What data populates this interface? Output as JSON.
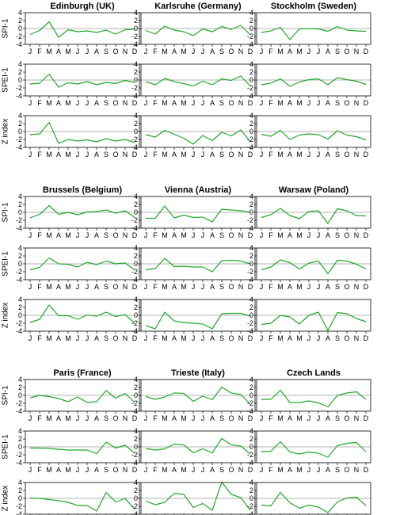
{
  "chart_data": {
    "type": "line",
    "months": [
      "J",
      "F",
      "M",
      "A",
      "M",
      "J",
      "J",
      "A",
      "S",
      "O",
      "N",
      "D"
    ],
    "y_ticks": [
      4,
      2,
      0,
      -2,
      -4
    ],
    "ylim": [
      -4,
      4
    ],
    "row_labels": [
      "SPI-1",
      "SPEI-1",
      "Z index"
    ],
    "line_color": "#22a82b",
    "zero_line_color": "#9a9a9a",
    "panels": [
      {
        "title": "Edinburgh (UK)",
        "series": [
          [
            -1.5,
            -0.5,
            1.7,
            -2.2,
            -0.3,
            -0.8,
            -0.6,
            -1.0,
            -0.4,
            -1.4,
            -0.3,
            -0.2
          ],
          [
            -1.0,
            -0.8,
            1.5,
            -1.8,
            -0.7,
            -1.0,
            -0.4,
            -1.2,
            -0.6,
            -0.9,
            -0.1,
            -0.6
          ],
          [
            -0.8,
            -0.6,
            2.3,
            -3.0,
            -2.0,
            -2.4,
            -2.1,
            -2.6,
            -1.8,
            -2.4,
            -2.0,
            -2.8
          ]
        ]
      },
      {
        "title": "Karlsruhe (Germany)",
        "series": [
          [
            -0.5,
            -1.4,
            0.6,
            -0.4,
            -0.8,
            -1.8,
            -0.1,
            -0.8,
            0.5,
            -0.2,
            0.8,
            -1.6
          ],
          [
            -0.4,
            -1.2,
            0.4,
            -0.4,
            -0.9,
            -1.5,
            -0.3,
            -1.2,
            0.3,
            -0.1,
            1.0,
            -1.5
          ],
          [
            -0.8,
            -1.4,
            0.3,
            -0.7,
            -1.7,
            -3.2,
            -1.0,
            -2.3,
            -0.2,
            -1.1,
            0.4,
            -2.6
          ]
        ]
      },
      {
        "title": "Stockholm (Sweden)",
        "series": [
          [
            -1.0,
            -0.6,
            0.3,
            -2.8,
            -0.1,
            0.0,
            -0.1,
            -0.7,
            0.5,
            -0.4,
            -0.6,
            -0.7
          ],
          [
            -1.2,
            -0.8,
            0.3,
            -1.6,
            -0.5,
            0.1,
            0.3,
            -1.2,
            0.6,
            0.1,
            -0.3,
            -1.1
          ],
          [
            -0.7,
            -1.2,
            0.3,
            -2.0,
            -0.9,
            -0.6,
            -0.8,
            -1.9,
            0.2,
            -0.9,
            -1.3,
            -2.1
          ]
        ]
      },
      {
        "title": "Brussels (Belgium)",
        "series": [
          [
            -1.4,
            -0.5,
            1.7,
            -0.5,
            0.0,
            -0.6,
            0.1,
            0.2,
            0.6,
            -0.2,
            0.4,
            -1.3
          ],
          [
            -1.5,
            -0.9,
            1.5,
            0.0,
            -0.1,
            -0.8,
            0.4,
            -0.2,
            0.7,
            0.0,
            0.2,
            -1.5
          ],
          [
            -1.8,
            -1.0,
            2.6,
            -0.1,
            -0.1,
            -1.0,
            0.1,
            -0.2,
            0.8,
            -0.3,
            0.2,
            -2.0
          ]
        ]
      },
      {
        "title": "Vienna (Austria)",
        "series": [
          [
            -1.5,
            -1.5,
            1.6,
            -1.4,
            -0.7,
            -1.3,
            -1.2,
            -2.4,
            0.8,
            0.6,
            0.4,
            0.0
          ],
          [
            -1.5,
            -1.2,
            1.4,
            -0.7,
            -0.6,
            -0.8,
            -0.8,
            -2.0,
            0.8,
            0.9,
            0.7,
            0.0
          ],
          [
            -2.6,
            -3.4,
            0.8,
            -1.4,
            -1.8,
            -2.0,
            -2.2,
            -3.4,
            0.4,
            0.5,
            0.5,
            -0.2
          ]
        ]
      },
      {
        "title": "Warsaw (Poland)",
        "series": [
          [
            -1.3,
            -0.6,
            1.0,
            -0.8,
            -1.6,
            0.2,
            0.4,
            -2.8,
            0.9,
            0.4,
            -0.8,
            -0.9
          ],
          [
            -1.5,
            -0.8,
            1.0,
            0.3,
            -1.3,
            0.2,
            0.7,
            -2.5,
            0.9,
            0.7,
            -0.1,
            -1.3
          ],
          [
            -2.3,
            -2.0,
            0.0,
            -0.4,
            -2.2,
            0.0,
            0.8,
            -3.8,
            0.7,
            0.4,
            -0.8,
            -1.6
          ]
        ]
      },
      {
        "title": "Paris (France)",
        "series": [
          [
            -0.6,
            0.0,
            -0.3,
            -0.8,
            -1.6,
            -0.4,
            -1.8,
            -1.6,
            1.2,
            -0.7,
            0.5,
            -1.8
          ],
          [
            -0.3,
            -0.3,
            -0.4,
            -0.6,
            -0.8,
            -0.8,
            -0.8,
            -1.7,
            1.2,
            -0.3,
            0.4,
            -1.6
          ],
          [
            0.1,
            0.0,
            -0.3,
            -0.6,
            -1.0,
            -1.8,
            -1.8,
            -3.2,
            1.5,
            -0.9,
            0.0,
            -2.8
          ]
        ]
      },
      {
        "title": "Trieste (Italy)",
        "series": [
          [
            -0.3,
            -1.0,
            -0.4,
            0.6,
            0.5,
            -1.5,
            -0.2,
            -1.1,
            2.1,
            0.6,
            0.2,
            -2.2
          ],
          [
            -0.4,
            -0.8,
            -0.5,
            0.7,
            0.5,
            -1.5,
            -0.5,
            -1.5,
            2.1,
            0.5,
            0.2,
            -1.8
          ],
          [
            -0.7,
            -1.6,
            -1.0,
            1.3,
            1.0,
            -2.3,
            -1.3,
            -3.0,
            4.1,
            1.0,
            0.2,
            -3.0
          ]
        ]
      },
      {
        "title": "Czech Lands",
        "series": [
          [
            -1.0,
            -1.0,
            1.3,
            -1.8,
            -1.8,
            -1.4,
            -1.9,
            -2.9,
            0.0,
            0.6,
            0.9,
            -1.0
          ],
          [
            -1.2,
            -1.1,
            1.3,
            -1.3,
            -1.8,
            -1.3,
            -1.6,
            -2.6,
            0.3,
            0.9,
            1.1,
            -1.2
          ],
          [
            -1.7,
            -1.9,
            1.5,
            -1.1,
            -2.5,
            -1.7,
            -2.2,
            -3.6,
            -0.9,
            0.1,
            0.3,
            -1.8
          ]
        ]
      }
    ]
  }
}
